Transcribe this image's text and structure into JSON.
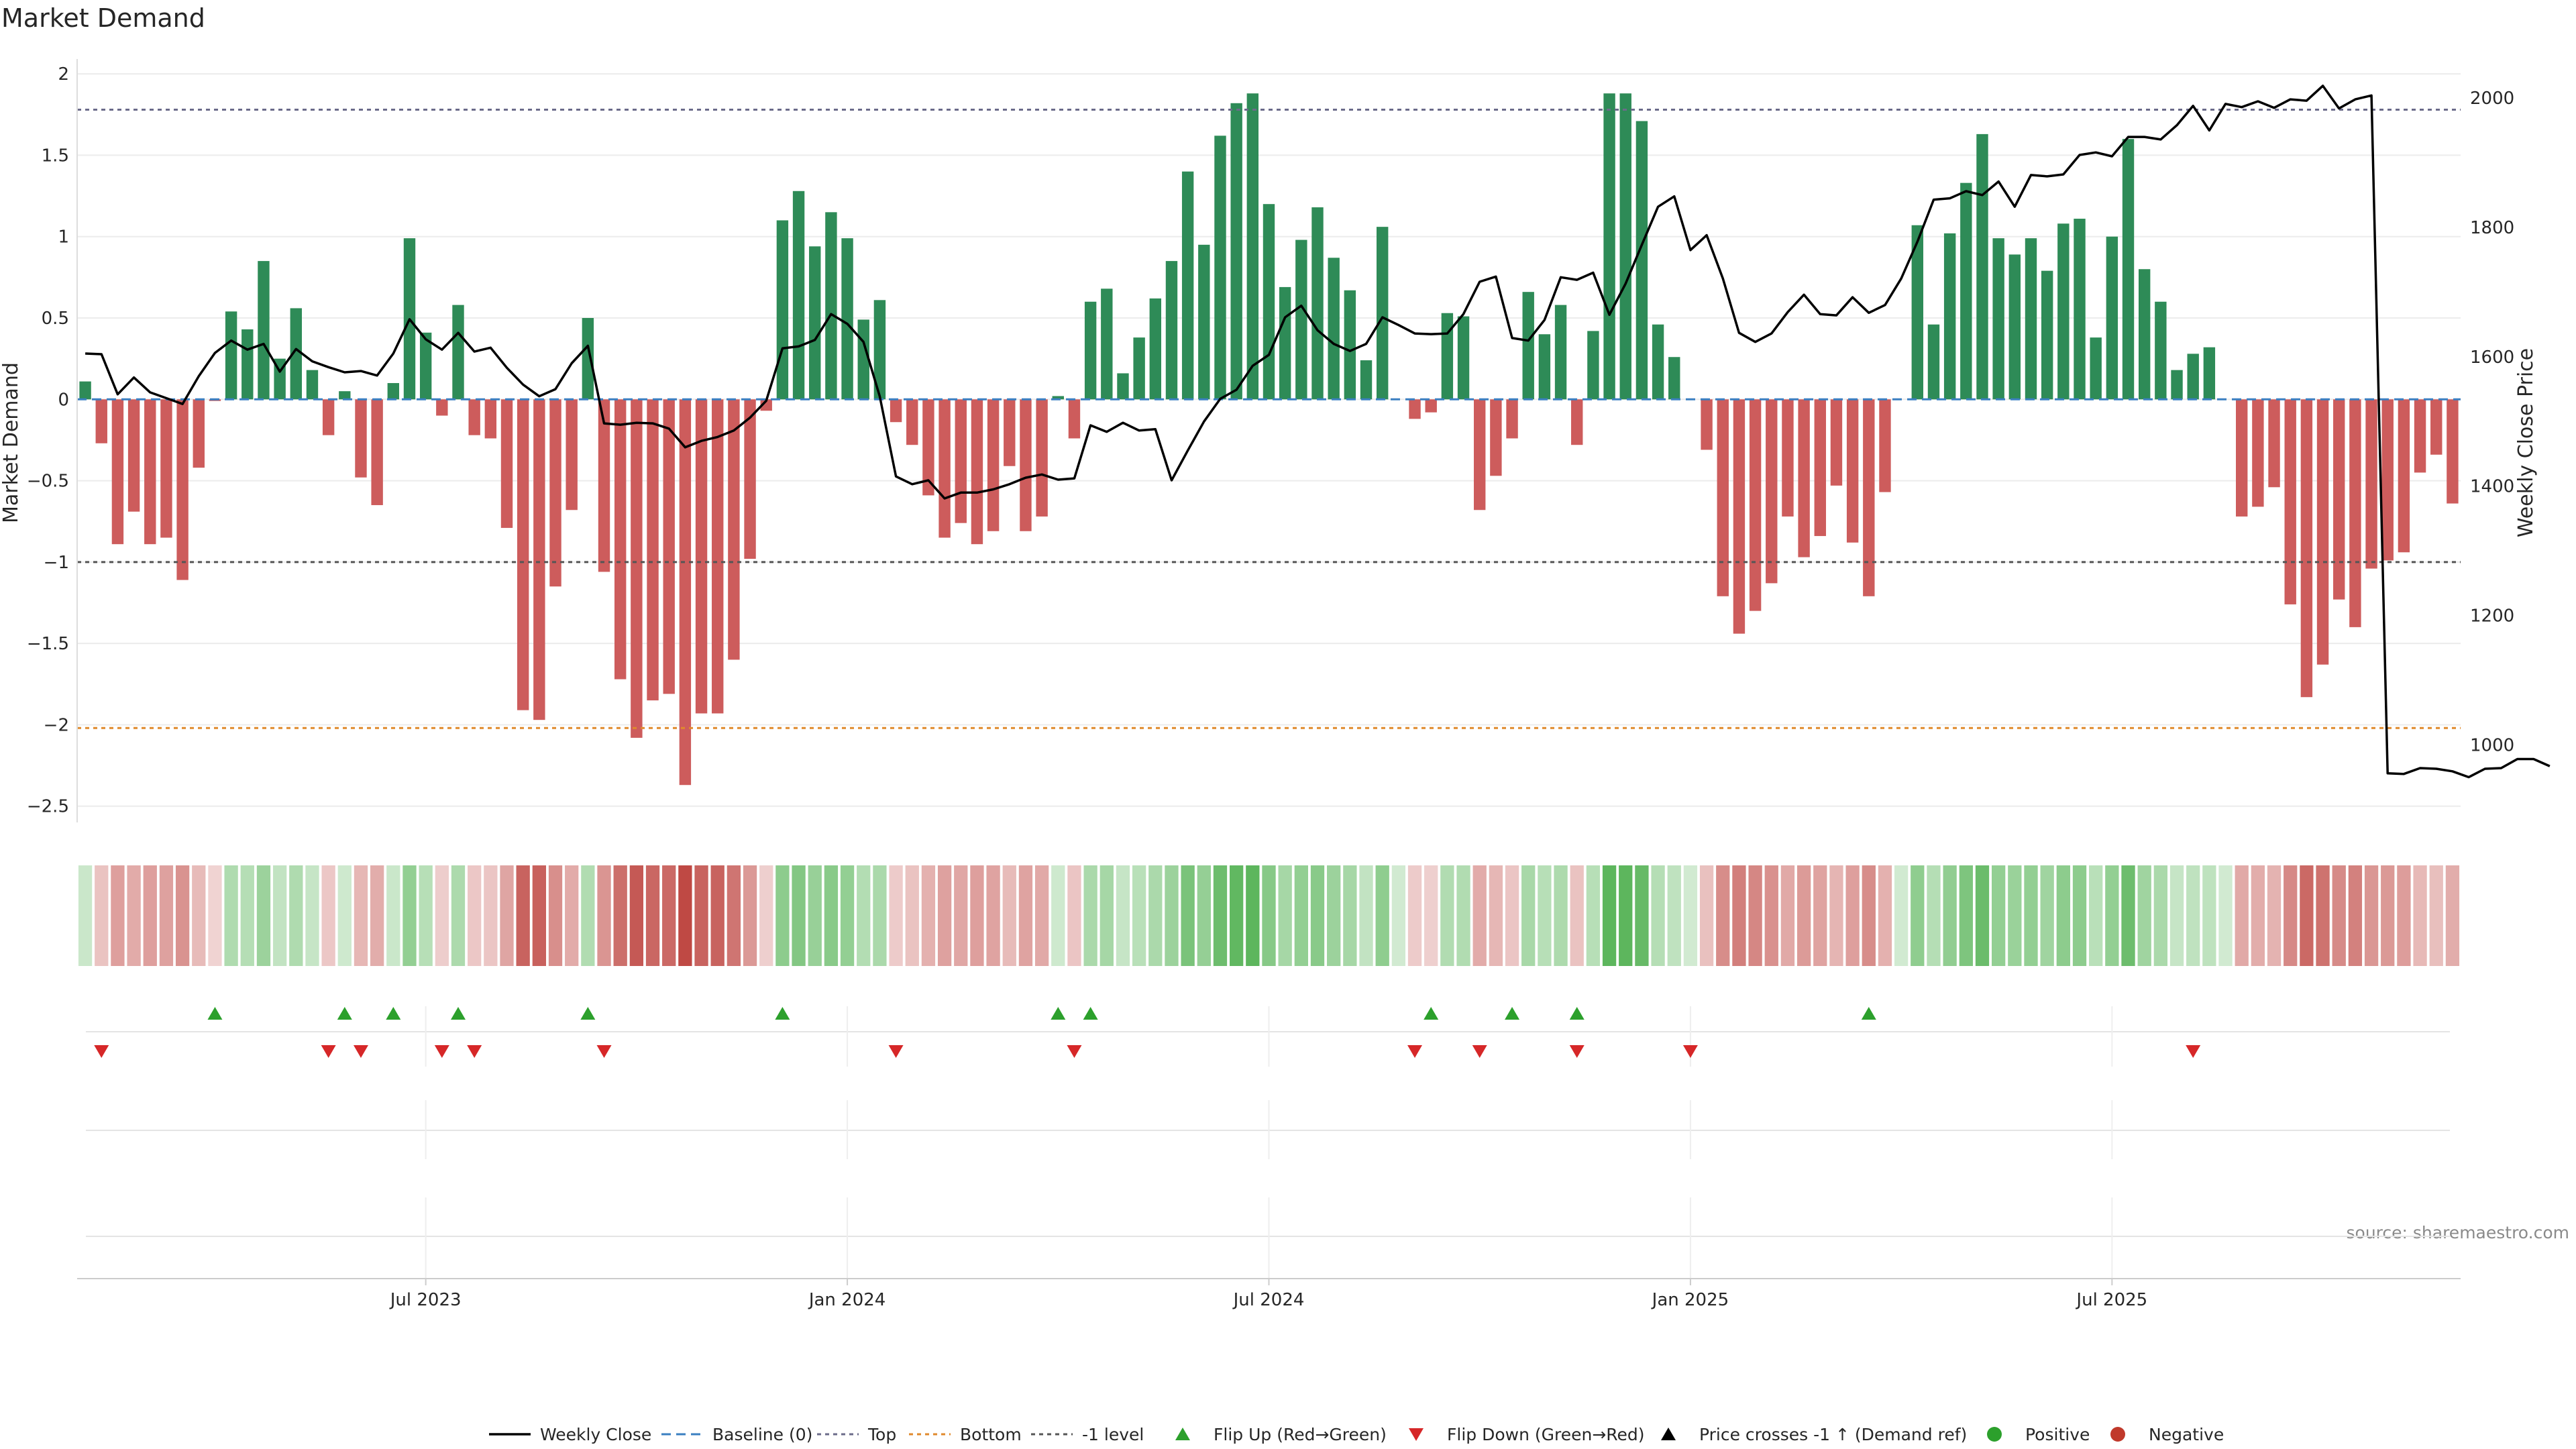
{
  "chart_data": {
    "type": "bar",
    "title": "Market Demand",
    "ylabel_left": "Market Demand",
    "ylabel_right": "Weekly Close Price",
    "source": "source: sharemaestro.com",
    "ylim_left": [
      -2.6,
      2.05
    ],
    "yticks_left": [
      {
        "v": 2,
        "label": "2"
      },
      {
        "v": 1.5,
        "label": "1.5"
      },
      {
        "v": 1,
        "label": "1"
      },
      {
        "v": 0.5,
        "label": "0.5"
      },
      {
        "v": 0,
        "label": "0"
      },
      {
        "v": -0.5,
        "label": "−0.5"
      },
      {
        "v": -1,
        "label": "−1"
      },
      {
        "v": -1.5,
        "label": "−1.5"
      },
      {
        "v": -2,
        "label": "−2"
      },
      {
        "v": -2.5,
        "label": "−2.5"
      }
    ],
    "ylim_right": [
      880,
      2050
    ],
    "yticks_right": [
      {
        "v": 2000,
        "label": "2000"
      },
      {
        "v": 1800,
        "label": "1800"
      },
      {
        "v": 1600,
        "label": "1600"
      },
      {
        "v": 1400,
        "label": "1400"
      },
      {
        "v": 1200,
        "label": "1200"
      },
      {
        "v": 1000,
        "label": "1000"
      }
    ],
    "x_ticks": [
      {
        "week": 21,
        "label": "Jul 2023"
      },
      {
        "week": 47,
        "label": "Jan 2024"
      },
      {
        "week": 73,
        "label": "Jul 2024"
      },
      {
        "week": 99,
        "label": "Jan 2025"
      },
      {
        "week": 125,
        "label": "Jul 2025"
      }
    ],
    "reference_lines": [
      {
        "name": "Top",
        "value": 1.78,
        "color": "#6b6b8a",
        "dash": "6,6"
      },
      {
        "name": "-1 level",
        "value": -1.0,
        "color": "#555555",
        "dash": "6,6"
      },
      {
        "name": "Bottom",
        "value": -2.02,
        "color": "#e08a2c",
        "dash": "6,6"
      }
    ],
    "colors": {
      "positive": "#2e8b57",
      "negative": "#cd5c5c",
      "price": "#000000",
      "baseline": "#3a7fc1",
      "up_marker": "#2ca02c",
      "down_marker": "#d62728"
    },
    "demand": [
      0.11,
      -0.27,
      -0.89,
      -0.69,
      -0.89,
      -0.85,
      -1.11,
      -0.42,
      -0.01,
      0.54,
      0.43,
      0.85,
      0.25,
      0.56,
      0.18,
      -0.22,
      0.05,
      -0.48,
      -0.65,
      0.1,
      0.99,
      0.41,
      -0.1,
      0.58,
      -0.22,
      -0.24,
      -0.79,
      -1.91,
      -1.97,
      -1.15,
      -0.68,
      0.5,
      -1.06,
      -1.72,
      -2.08,
      -1.85,
      -1.81,
      -2.37,
      -1.93,
      -1.93,
      -1.6,
      -0.98,
      -0.07,
      1.1,
      1.28,
      0.94,
      1.15,
      0.99,
      0.49,
      0.61,
      -0.14,
      -0.28,
      -0.59,
      -0.85,
      -0.76,
      -0.89,
      -0.81,
      -0.41,
      -0.81,
      -0.72,
      0.02,
      -0.24,
      0.6,
      0.68,
      0.16,
      0.38,
      0.62,
      0.85,
      1.4,
      0.95,
      1.62,
      1.82,
      1.88,
      1.2,
      0.69,
      0.98,
      1.18,
      0.87,
      0.67,
      0.24,
      1.06,
      0.0,
      -0.12,
      -0.08,
      0.53,
      0.51,
      -0.68,
      -0.47,
      -0.24,
      0.66,
      0.4,
      0.58,
      -0.28,
      0.42,
      1.88,
      1.88,
      1.71,
      0.46,
      0.26,
      0.0,
      -0.31,
      -1.21,
      -1.44,
      -1.3,
      -1.13,
      -0.72,
      -0.97,
      -0.84,
      -0.53,
      -0.88,
      -1.21,
      -0.57,
      0.0,
      1.07,
      0.46,
      1.02,
      1.33,
      1.63,
      0.99,
      0.89,
      0.99,
      0.79,
      1.08,
      1.11,
      0.38,
      1.0,
      1.6,
      0.8,
      0.6,
      0.18,
      0.28,
      0.32,
      0.0,
      -0.72,
      -0.66,
      -0.54,
      -1.26,
      -1.83,
      -1.63,
      -1.23,
      -1.4,
      -1.04,
      -0.99,
      -0.94,
      -0.45,
      -0.34,
      -0.64
    ],
    "price": [
      1605,
      1604,
      1542,
      1568,
      1545,
      1536,
      1527,
      1570,
      1606,
      1625,
      1611,
      1620,
      1577,
      1612,
      1593,
      1584,
      1576,
      1578,
      1571,
      1605,
      1658,
      1627,
      1611,
      1637,
      1608,
      1614,
      1583,
      1557,
      1539,
      1550,
      1590,
      1617,
      1497,
      1495,
      1498,
      1497,
      1489,
      1460,
      1470,
      1476,
      1486,
      1506,
      1532,
      1613,
      1616,
      1626,
      1666,
      1651,
      1623,
      1539,
      1415,
      1403,
      1409,
      1381,
      1390,
      1390,
      1395,
      1403,
      1413,
      1418,
      1410,
      1412,
      1494,
      1484,
      1498,
      1486,
      1488,
      1409,
      1455,
      1500,
      1535,
      1549,
      1586,
      1603,
      1661,
      1679,
      1641,
      1620,
      1609,
      1620,
      1661,
      1649,
      1636,
      1635,
      1636,
      1666,
      1716,
      1724,
      1629,
      1625,
      1657,
      1723,
      1719,
      1730,
      1665,
      1713,
      1773,
      1832,
      1848,
      1765,
      1788,
      1721,
      1637,
      1623,
      1636,
      1669,
      1696,
      1666,
      1664,
      1692,
      1668,
      1680,
      1721,
      1778,
      1843,
      1845,
      1856,
      1850,
      1871,
      1832,
      1881,
      1879,
      1882,
      1912,
      1916,
      1910,
      1940,
      1940,
      1936,
      1958,
      1988,
      1950,
      1991,
      1986,
      1995,
      1985,
      1998,
      1996,
      2019,
      1984,
      1998,
      2004,
      956,
      955,
      964,
      963,
      959,
      950,
      963,
      964,
      978,
      978,
      967
    ],
    "flip_up_weeks": [
      8,
      16,
      19,
      23,
      31,
      43,
      60,
      62,
      83,
      88,
      92,
      110
    ],
    "flip_down_weeks": [
      1,
      15,
      17,
      22,
      24,
      32,
      50,
      61,
      82,
      86,
      92,
      99,
      130
    ],
    "legend": [
      {
        "key": "weekly_close",
        "label": "Weekly Close"
      },
      {
        "key": "baseline",
        "label": "Baseline (0)"
      },
      {
        "key": "top",
        "label": "Top"
      },
      {
        "key": "bottom",
        "label": "Bottom"
      },
      {
        "key": "minus1",
        "label": "-1 level"
      },
      {
        "key": "flip_up",
        "label": "Flip Up (Red→Green)"
      },
      {
        "key": "flip_down",
        "label": "Flip Down (Green→Red)"
      },
      {
        "key": "crosses",
        "label": "Price crosses -1 ↑ (Demand ref)"
      },
      {
        "key": "positive",
        "label": "Positive"
      },
      {
        "key": "negative",
        "label": "Negative"
      }
    ]
  }
}
